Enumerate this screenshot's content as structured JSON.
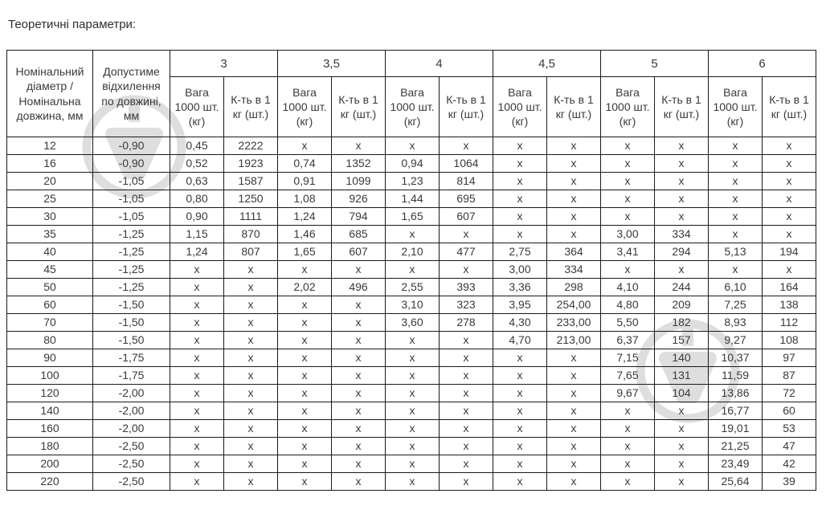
{
  "title": "Теоретичні параметри:",
  "watermark": {
    "icon": "shield-logo-icon",
    "color": "#a9a9a9"
  },
  "table": {
    "col1_header": "Номінальний діаметр / Номінальна довжина, мм",
    "col2_header": "Допустиме відхилення по довжині, мм",
    "groups": [
      "3",
      "3,5",
      "4",
      "4,5",
      "5",
      "6"
    ],
    "sub_headers": {
      "weight": "Вага 1000 шт. (кг)",
      "count": "К-ть в 1 кг (шт.)"
    },
    "rows": [
      {
        "diameter": "12",
        "deviation": "-0,90",
        "cells": [
          "0,45",
          "2222",
          "x",
          "x",
          "x",
          "x",
          "x",
          "x",
          "x",
          "x",
          "x",
          "x"
        ]
      },
      {
        "diameter": "16",
        "deviation": "-0,90",
        "cells": [
          "0,52",
          "1923",
          "0,74",
          "1352",
          "0,94",
          "1064",
          "x",
          "x",
          "x",
          "x",
          "x",
          "x"
        ]
      },
      {
        "diameter": "20",
        "deviation": "-1,05",
        "cells": [
          "0,63",
          "1587",
          "0,91",
          "1099",
          "1,23",
          "814",
          "x",
          "x",
          "x",
          "x",
          "x",
          "x"
        ]
      },
      {
        "diameter": "25",
        "deviation": "-1,05",
        "cells": [
          "0,80",
          "1250",
          "1,08",
          "926",
          "1,44",
          "695",
          "x",
          "x",
          "x",
          "x",
          "x",
          "x"
        ]
      },
      {
        "diameter": "30",
        "deviation": "-1,05",
        "cells": [
          "0,90",
          "1111",
          "1,24",
          "794",
          "1,65",
          "607",
          "x",
          "x",
          "x",
          "x",
          "x",
          "x"
        ]
      },
      {
        "diameter": "35",
        "deviation": "-1,25",
        "cells": [
          "1,15",
          "870",
          "1,46",
          "685",
          "x",
          "x",
          "x",
          "x",
          "3,00",
          "334",
          "x",
          "x"
        ]
      },
      {
        "diameter": "40",
        "deviation": "-1,25",
        "cells": [
          "1,24",
          "807",
          "1,65",
          "607",
          "2,10",
          "477",
          "2,75",
          "364",
          "3,41",
          "294",
          "5,13",
          "194"
        ]
      },
      {
        "diameter": "45",
        "deviation": "-1,25",
        "cells": [
          "x",
          "x",
          "x",
          "x",
          "x",
          "x",
          "3,00",
          "334",
          "x",
          "x",
          "x",
          "x"
        ]
      },
      {
        "diameter": "50",
        "deviation": "-1,25",
        "cells": [
          "x",
          "x",
          "2,02",
          "496",
          "2,55",
          "393",
          "3,36",
          "298",
          "4,10",
          "244",
          "6,10",
          "164"
        ]
      },
      {
        "diameter": "60",
        "deviation": "-1,50",
        "cells": [
          "x",
          "x",
          "x",
          "x",
          "3,10",
          "323",
          "3,95",
          "254,00",
          "4,80",
          "209",
          "7,25",
          "138"
        ]
      },
      {
        "diameter": "70",
        "deviation": "-1,50",
        "cells": [
          "x",
          "x",
          "x",
          "x",
          "3,60",
          "278",
          "4,30",
          "233,00",
          "5,50",
          "182",
          "8,93",
          "112"
        ]
      },
      {
        "diameter": "80",
        "deviation": "-1,50",
        "cells": [
          "x",
          "x",
          "x",
          "x",
          "x",
          "x",
          "4,70",
          "213,00",
          "6,37",
          "157",
          "9,27",
          "108"
        ]
      },
      {
        "diameter": "90",
        "deviation": "-1,75",
        "cells": [
          "x",
          "x",
          "x",
          "x",
          "x",
          "x",
          "x",
          "x",
          "7,15",
          "140",
          "10,37",
          "97"
        ]
      },
      {
        "diameter": "100",
        "deviation": "-1,75",
        "cells": [
          "x",
          "x",
          "x",
          "x",
          "x",
          "x",
          "x",
          "x",
          "7,65",
          "131",
          "11,59",
          "87"
        ]
      },
      {
        "diameter": "120",
        "deviation": "-2,00",
        "cells": [
          "x",
          "x",
          "x",
          "x",
          "x",
          "x",
          "x",
          "x",
          "9,67",
          "104",
          "13,86",
          "72"
        ]
      },
      {
        "diameter": "140",
        "deviation": "-2,00",
        "cells": [
          "x",
          "x",
          "x",
          "x",
          "x",
          "x",
          "x",
          "x",
          "x",
          "x",
          "16,77",
          "60"
        ]
      },
      {
        "diameter": "160",
        "deviation": "-2,00",
        "cells": [
          "x",
          "x",
          "x",
          "x",
          "x",
          "x",
          "x",
          "x",
          "x",
          "x",
          "19,01",
          "53"
        ]
      },
      {
        "diameter": "180",
        "deviation": "-2,50",
        "cells": [
          "x",
          "x",
          "x",
          "x",
          "x",
          "x",
          "x",
          "x",
          "x",
          "x",
          "21,25",
          "47"
        ]
      },
      {
        "diameter": "200",
        "deviation": "-2,50",
        "cells": [
          "x",
          "x",
          "x",
          "x",
          "x",
          "x",
          "x",
          "x",
          "x",
          "x",
          "23,49",
          "42"
        ]
      },
      {
        "diameter": "220",
        "deviation": "-2,50",
        "cells": [
          "x",
          "x",
          "x",
          "x",
          "x",
          "x",
          "x",
          "x",
          "x",
          "x",
          "25,64",
          "39"
        ]
      }
    ]
  }
}
